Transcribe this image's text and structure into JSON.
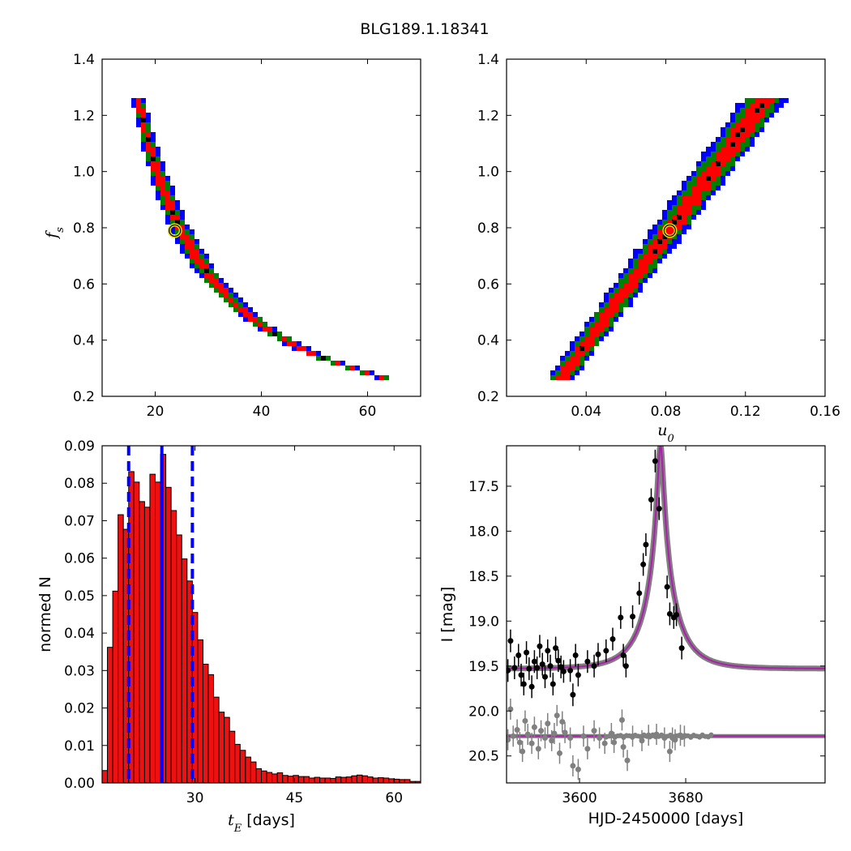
{
  "figure_title": "BLG189.1.18341",
  "chart_data": [
    {
      "id": "fs-vs-tE",
      "type": "heatmap",
      "title": "",
      "xlabel": "",
      "ylabel": "f",
      "ylabel_sub": "s",
      "xlim": [
        10,
        70
      ],
      "ylim": [
        0.2,
        1.4
      ],
      "xticks": [
        "20",
        "40",
        "60"
      ],
      "xtick_values": [
        20,
        40,
        60
      ],
      "yticks": [
        "0.2",
        "0.4",
        "0.6",
        "0.8",
        "1.0",
        "1.2",
        "1.4"
      ],
      "ytick_values": [
        0.2,
        0.4,
        0.6,
        0.8,
        1.0,
        1.2,
        1.4
      ],
      "colors": {
        "outer": "#0000ff",
        "middle": "#008000",
        "inner": "#ff0000",
        "core": "#000000",
        "best_fit": "#e6e600"
      },
      "band_model": "tE = 25.0 * (fs / 0.79)^-0.85",
      "band_fs_range": [
        0.255,
        1.265
      ],
      "best_fit": {
        "x": 23.7,
        "y": 0.79
      }
    },
    {
      "id": "fs-vs-u0",
      "type": "heatmap",
      "title": "",
      "xlabel": "u",
      "xlabel_sub": "0",
      "ylabel": "",
      "xlim": [
        0.0,
        0.16
      ],
      "ylim": [
        0.2,
        1.4
      ],
      "xticks": [
        "0.04",
        "0.08",
        "0.12",
        "0.16"
      ],
      "xtick_values": [
        0.04,
        0.08,
        0.12,
        0.16
      ],
      "yticks": [
        "0.2",
        "0.4",
        "0.6",
        "0.8",
        "1.0",
        "1.2",
        "1.4"
      ],
      "ytick_values": [
        0.2,
        0.4,
        0.6,
        0.8,
        1.0,
        1.2,
        1.4
      ],
      "colors": {
        "outer": "#0000ff",
        "middle": "#008000",
        "inner": "#ff0000",
        "core": "#000000",
        "best_fit": "#e6e600"
      },
      "band_model": "u0 = 0.0815 * fs / 0.79",
      "band_fs_range": [
        0.255,
        1.265
      ],
      "best_fit": {
        "x": 0.082,
        "y": 0.79
      }
    },
    {
      "id": "tE-histogram",
      "type": "bar",
      "title": "",
      "xlabel_math": "t",
      "xlabel_sub": "E",
      "xlabel_rest": " [days]",
      "ylabel": "normed N",
      "xlim": [
        16,
        64
      ],
      "ylim": [
        0.0,
        0.09
      ],
      "xticks": [
        "30",
        "45",
        "60"
      ],
      "xtick_values": [
        30,
        45,
        60
      ],
      "yticks": [
        "0.00",
        "0.01",
        "0.02",
        "0.03",
        "0.04",
        "0.05",
        "0.06",
        "0.07",
        "0.08",
        "0.09"
      ],
      "ytick_values": [
        0.0,
        0.01,
        0.02,
        0.03,
        0.04,
        0.05,
        0.06,
        0.07,
        0.08,
        0.09
      ],
      "bin_start": 16.0,
      "bin_width": 0.8,
      "values": [
        0.0033,
        0.0362,
        0.0512,
        0.0716,
        0.0677,
        0.0831,
        0.0803,
        0.0751,
        0.0736,
        0.0824,
        0.0803,
        0.0877,
        0.0789,
        0.0727,
        0.0662,
        0.0598,
        0.0539,
        0.0455,
        0.0382,
        0.0317,
        0.0289,
        0.0229,
        0.0189,
        0.0175,
        0.0138,
        0.0103,
        0.0087,
        0.0069,
        0.0056,
        0.0038,
        0.0032,
        0.0028,
        0.0024,
        0.0027,
        0.002,
        0.0018,
        0.002,
        0.0017,
        0.0017,
        0.0013,
        0.0015,
        0.0013,
        0.0013,
        0.0012,
        0.0016,
        0.0015,
        0.0016,
        0.0019,
        0.0021,
        0.0019,
        0.0016,
        0.0013,
        0.0014,
        0.0013,
        0.0011,
        0.001,
        0.0009,
        0.0009,
        0.0004,
        0.0004
      ],
      "vlines": [
        {
          "x": 20.0,
          "style": "dashed",
          "color": "#0000ff"
        },
        {
          "x": 25.0,
          "style": "solid",
          "color": "#0000ff"
        },
        {
          "x": 29.6,
          "style": "dashed",
          "color": "#0000ff"
        }
      ],
      "colors": {
        "bar": "#ee1111",
        "edge": "#000000"
      }
    },
    {
      "id": "light-curve",
      "type": "scatter",
      "title": "",
      "xlabel": "HJD-2450000 [days]",
      "ylabel": "I [mag]",
      "xlim": [
        3545,
        3785
      ],
      "ylim": [
        20.8,
        17.05
      ],
      "inverted_y": true,
      "xticks": [
        "3600",
        "3680"
      ],
      "xtick_values": [
        3600,
        3680
      ],
      "yticks": [
        "17.5",
        "18.0",
        "18.5",
        "19.0",
        "19.5",
        "20.0",
        "20.5"
      ],
      "ytick_values": [
        17.5,
        18.0,
        18.5,
        19.0,
        19.5,
        20.0,
        20.5
      ],
      "model": {
        "baseline": 19.53,
        "peak_mag": 17.05,
        "t0": 3661,
        "u0": 0.082,
        "tE": 23.7,
        "fs": 0.79
      },
      "residual_baseline": 20.28,
      "series": [
        {
          "name": "",
          "color": "#000000",
          "points": [
            [
              3546,
              19.55
            ],
            [
              3548,
              19.22
            ],
            [
              3551,
              19.52
            ],
            [
              3554,
              19.38
            ],
            [
              3556,
              19.6
            ],
            [
              3558,
              19.7
            ],
            [
              3560,
              19.35
            ],
            [
              3562,
              19.53
            ],
            [
              3564,
              19.73
            ],
            [
              3566,
              19.45
            ],
            [
              3568,
              19.52
            ],
            [
              3570,
              19.28
            ],
            [
              3572,
              19.48
            ],
            [
              3574,
              19.62
            ],
            [
              3576,
              19.33
            ],
            [
              3578,
              19.5
            ],
            [
              3580,
              19.7
            ],
            [
              3582,
              19.3
            ],
            [
              3584,
              19.44
            ],
            [
              3586,
              19.51
            ],
            [
              3588,
              19.56
            ],
            [
              3593,
              19.55
            ],
            [
              3595,
              19.82
            ],
            [
              3597,
              19.38
            ],
            [
              3599,
              19.6
            ],
            [
              3606,
              19.45
            ],
            [
              3611,
              19.5
            ],
            [
              3614,
              19.37
            ],
            [
              3620,
              19.33
            ],
            [
              3625,
              19.2
            ],
            [
              3631,
              18.96
            ],
            [
              3633,
              19.38
            ],
            [
              3635,
              19.5
            ],
            [
              3640,
              18.95
            ],
            [
              3645,
              18.69
            ],
            [
              3648,
              18.37
            ],
            [
              3650,
              18.15
            ],
            [
              3654,
              17.65
            ],
            [
              3657,
              17.22
            ],
            [
              3660,
              17.75
            ],
            [
              3666,
              18.62
            ],
            [
              3668,
              18.92
            ],
            [
              3671,
              18.96
            ],
            [
              3673,
              18.93
            ],
            [
              3677,
              19.3
            ]
          ]
        },
        {
          "name": "",
          "color": "#808080",
          "points": [
            [
              3546,
              20.32
            ],
            [
              3548,
              19.98
            ],
            [
              3550,
              20.28
            ],
            [
              3553,
              20.21
            ],
            [
              3555,
              20.35
            ],
            [
              3557,
              20.45
            ],
            [
              3559,
              20.11
            ],
            [
              3561,
              20.26
            ],
            [
              3564,
              20.36
            ],
            [
              3566,
              20.18
            ],
            [
              3569,
              20.42
            ],
            [
              3571,
              20.22
            ],
            [
              3574,
              20.3
            ],
            [
              3576,
              20.14
            ],
            [
              3579,
              20.33
            ],
            [
              3581,
              20.25
            ],
            [
              3583,
              20.05
            ],
            [
              3585,
              20.47
            ],
            [
              3587,
              20.12
            ],
            [
              3589,
              20.24
            ],
            [
              3593,
              20.3
            ],
            [
              3595,
              20.61
            ],
            [
              3599,
              20.65
            ],
            [
              3603,
              20.28
            ],
            [
              3606,
              20.42
            ],
            [
              3611,
              20.22
            ],
            [
              3615,
              20.3
            ],
            [
              3619,
              20.36
            ],
            [
              3624,
              20.25
            ],
            [
              3626,
              20.35
            ],
            [
              3632,
              20.1
            ],
            [
              3633,
              20.4
            ],
            [
              3636,
              20.55
            ],
            [
              3640,
              20.28
            ],
            [
              3647,
              20.33
            ],
            [
              3652,
              20.27
            ],
            [
              3658,
              20.26
            ],
            [
              3664,
              20.3
            ],
            [
              3668,
              20.45
            ],
            [
              3670,
              20.3
            ],
            [
              3672,
              20.32
            ],
            [
              3676,
              20.27
            ],
            [
              3679,
              20.28
            ]
          ]
        }
      ],
      "colors": {
        "model": "#aa22aa",
        "model_band": "#808080"
      }
    }
  ]
}
